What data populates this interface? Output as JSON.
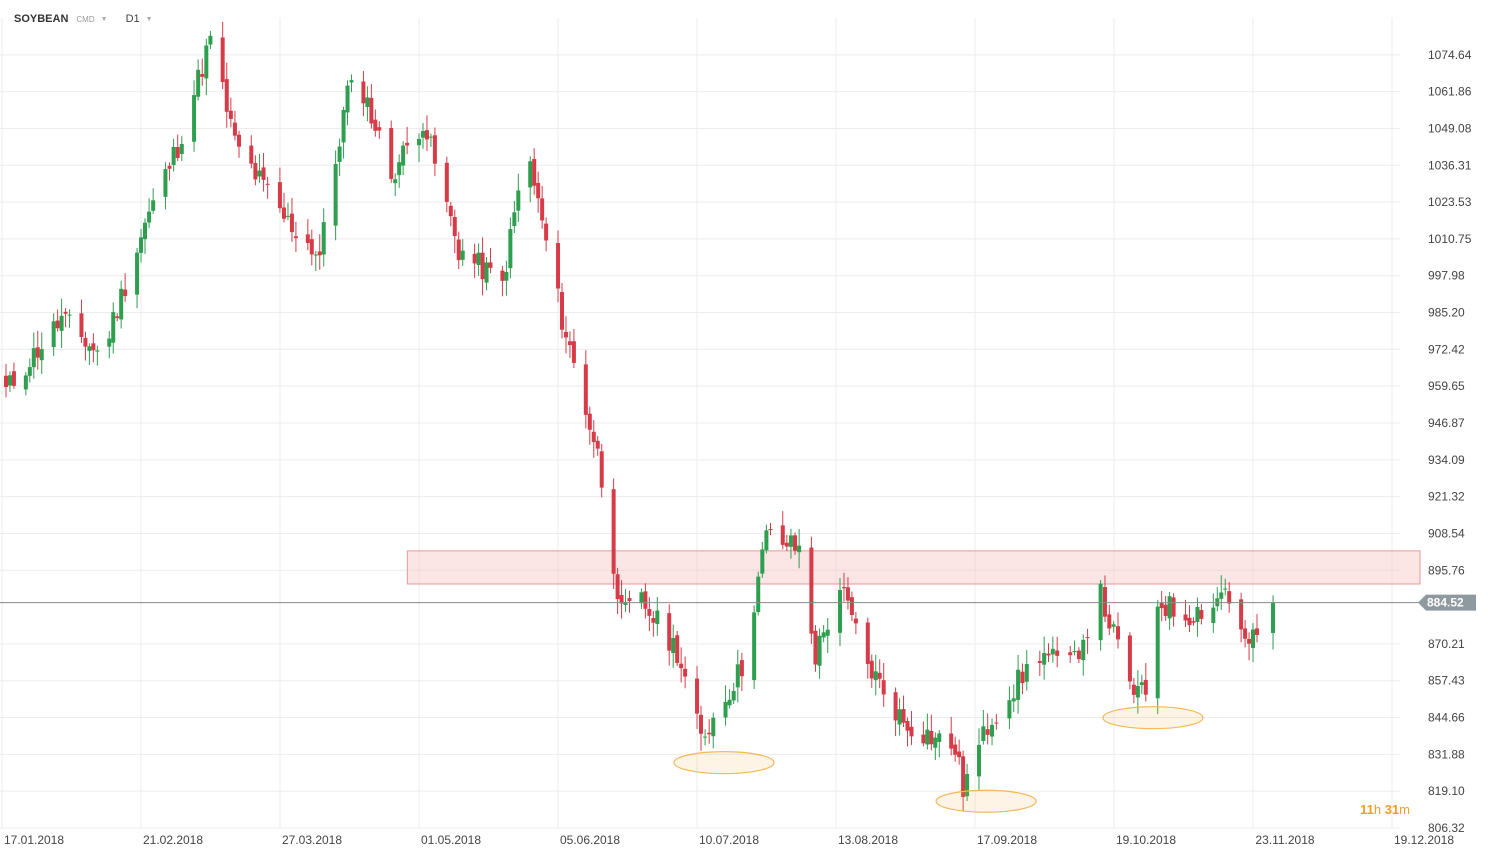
{
  "header": {
    "symbol": "SOYBEAN",
    "tag": "CMD",
    "timeframe": "D1"
  },
  "timer": {
    "hours": "11",
    "h_unit": "h",
    "minutes": "31",
    "m_unit": "m"
  },
  "colors": {
    "bull": "#2e9e4f",
    "bear": "#d63b47",
    "zone": "#f6c6c6",
    "oval": "#f5b85a",
    "price_tag": "#8f9aa0"
  },
  "chart_data": {
    "type": "candlestick",
    "y_ticks": [
      "1074.64",
      "1061.86",
      "1049.08",
      "1036.31",
      "1023.53",
      "1010.75",
      "997.98",
      "985.20",
      "972.42",
      "959.65",
      "946.87",
      "934.09",
      "921.32",
      "908.54",
      "895.76",
      "870.21",
      "857.43",
      "844.66",
      "831.88",
      "819.10",
      "806.32"
    ],
    "ylim": [
      806.32,
      1087.42
    ],
    "x_ticks": [
      "17.01.2018",
      "21.02.2018",
      "27.03.2018",
      "01.05.2018",
      "05.06.2018",
      "10.07.2018",
      "13.08.2018",
      "17.09.2018",
      "19.10.2018",
      "23.11.2018",
      "19.12.2018"
    ],
    "current_price": "884.52",
    "resistance_zone": {
      "low": 891.0,
      "high": 902.5,
      "x_start": "20.04.2018"
    },
    "highlighted_lows": [
      {
        "date": "10.07.2018",
        "price": 829.0
      },
      {
        "date": "13.09.2018",
        "price": 815.6
      },
      {
        "date": "22.10.2018",
        "price": 844.6
      }
    ],
    "anchors": [
      {
        "date": "17.01.2018",
        "price": 958
      },
      {
        "date": "31.01.2018",
        "price": 983
      },
      {
        "date": "10.02.2018",
        "price": 970
      },
      {
        "date": "21.02.2018",
        "price": 1016
      },
      {
        "date": "01.03.2018",
        "price": 1043
      },
      {
        "date": "09.03.2018",
        "price": 1080
      },
      {
        "date": "15.03.2018",
        "price": 1044
      },
      {
        "date": "27.03.2018",
        "price": 1018
      },
      {
        "date": "05.04.2018",
        "price": 1005
      },
      {
        "date": "12.04.2018",
        "price": 1062
      },
      {
        "date": "16.04.2018",
        "price": 1062
      },
      {
        "date": "23.04.2018",
        "price": 1033
      },
      {
        "date": "01.05.2018",
        "price": 1052
      },
      {
        "date": "10.05.2018",
        "price": 1007
      },
      {
        "date": "21.05.2018",
        "price": 995
      },
      {
        "date": "27.05.2018",
        "price": 1043
      },
      {
        "date": "05.06.2018",
        "price": 983
      },
      {
        "date": "14.06.2018",
        "price": 936
      },
      {
        "date": "20.06.2018",
        "price": 880
      },
      {
        "date": "25.06.2018",
        "price": 885
      },
      {
        "date": "04.07.2018",
        "price": 868
      },
      {
        "date": "10.07.2018",
        "price": 837
      },
      {
        "date": "20.07.2018",
        "price": 862
      },
      {
        "date": "26.07.2018",
        "price": 908
      },
      {
        "date": "03.08.2018",
        "price": 903
      },
      {
        "date": "07.08.2018",
        "price": 866
      },
      {
        "date": "13.08.2018",
        "price": 890
      },
      {
        "date": "20.08.2018",
        "price": 863
      },
      {
        "date": "29.08.2018",
        "price": 843
      },
      {
        "date": "11.09.2018",
        "price": 834
      },
      {
        "date": "13.09.2018",
        "price": 820
      },
      {
        "date": "20.09.2018",
        "price": 845
      },
      {
        "date": "01.10.2018",
        "price": 867
      },
      {
        "date": "08.10.2018",
        "price": 862
      },
      {
        "date": "15.10.2018",
        "price": 887
      },
      {
        "date": "22.10.2018",
        "price": 855
      },
      {
        "date": "26.10.2018",
        "price": 852
      },
      {
        "date": "29.10.2018",
        "price": 885
      },
      {
        "date": "05.11.2018",
        "price": 880
      },
      {
        "date": "12.11.2018",
        "price": 884
      },
      {
        "date": "15.11.2018",
        "price": 890
      },
      {
        "date": "20.11.2018",
        "price": 870
      },
      {
        "date": "23.11.2018",
        "price": 872
      },
      {
        "date": "26.11.2018",
        "price": 884.52
      }
    ]
  }
}
